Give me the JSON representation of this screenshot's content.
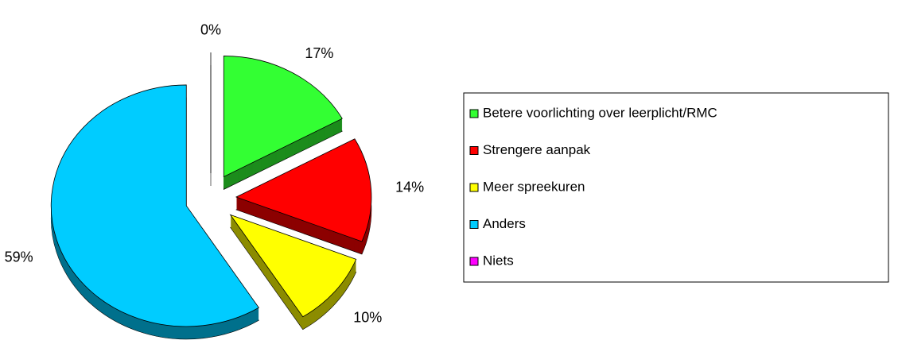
{
  "chart_data": {
    "type": "pie",
    "categories": [
      "Betere voorlichting over leerplicht/RMC",
      "Strengere aanpak",
      "Meer spreekuren",
      "Anders",
      "Niets"
    ],
    "values": [
      17,
      14,
      10,
      59,
      0
    ],
    "value_labels": [
      "17%",
      "14%",
      "10%",
      "59%",
      "0%"
    ],
    "colors": [
      "#33ff33",
      "#ff0000",
      "#ffff00",
      "#00ccff",
      "#ff00ff"
    ],
    "legend": "right"
  }
}
